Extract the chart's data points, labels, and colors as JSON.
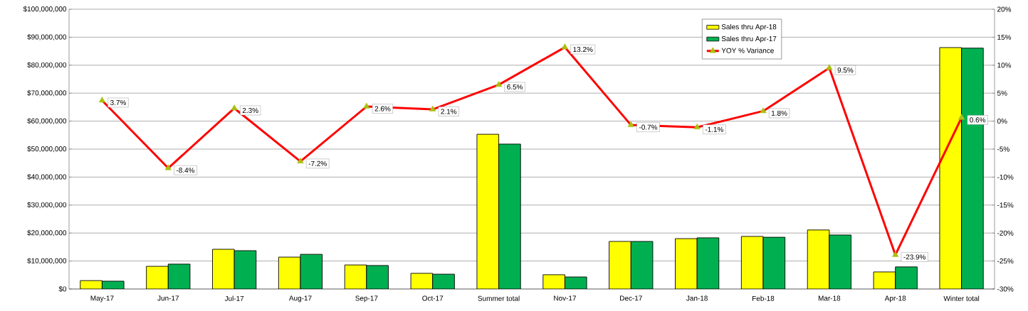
{
  "chart_data": {
    "type": "bar",
    "categories": [
      "May-17",
      "Jun-17",
      "Jul-17",
      "Aug-17",
      "Sep-17",
      "Oct-17",
      "Summer total",
      "Nov-17",
      "Dec-17",
      "Jan-18",
      "Feb-18",
      "Mar-18",
      "Apr-18",
      "Winter total"
    ],
    "series": [
      {
        "name": "Sales thru Apr-18",
        "color": "#ffff00",
        "values": [
          3000000,
          8100000,
          14200000,
          11400000,
          8600000,
          5600000,
          55300000,
          5100000,
          17000000,
          18000000,
          18800000,
          21100000,
          6100000,
          86300000
        ]
      },
      {
        "name": "Sales thru Apr-17",
        "color": "#00b050",
        "values": [
          2800000,
          8900000,
          13700000,
          12400000,
          8400000,
          5300000,
          51800000,
          4300000,
          17000000,
          18300000,
          18500000,
          19300000,
          7900000,
          86100000
        ]
      },
      {
        "name": "YOY % Variance",
        "type": "line",
        "axis": "y2",
        "color": "#ff0000",
        "values": [
          3.7,
          -8.4,
          2.3,
          -7.2,
          2.6,
          2.1,
          6.5,
          13.2,
          -0.7,
          -1.1,
          1.8,
          9.5,
          -23.9,
          0.6
        ],
        "value_labels": [
          "3.7%",
          "-8.4%",
          "2.3%",
          "-7.2%",
          "2.6%",
          "2.1%",
          "6.5%",
          "13.2%",
          "-0.7%",
          "-1.1%",
          "1.8%",
          "9.5%",
          "-23.9%",
          "0.6%"
        ]
      }
    ],
    "ylim": [
      0,
      100000000
    ],
    "yticks": [
      {
        "value": 0,
        "label": "$0"
      },
      {
        "value": 10000000,
        "label": "$10,000,000"
      },
      {
        "value": 20000000,
        "label": "$20,000,000"
      },
      {
        "value": 30000000,
        "label": "$30,000,000"
      },
      {
        "value": 40000000,
        "label": "$40,000,000"
      },
      {
        "value": 50000000,
        "label": "$50,000,000"
      },
      {
        "value": 60000000,
        "label": "$60,000,000"
      },
      {
        "value": 70000000,
        "label": "$70,000,000"
      },
      {
        "value": 80000000,
        "label": "$80,000,000"
      },
      {
        "value": 90000000,
        "label": "$90,000,000"
      },
      {
        "value": 100000000,
        "label": "$100,000,000"
      }
    ],
    "y2lim": [
      -30,
      20
    ],
    "y2ticks": [
      {
        "value": -30,
        "label": "-30%"
      },
      {
        "value": -25,
        "label": "-25%"
      },
      {
        "value": -20,
        "label": "-20%"
      },
      {
        "value": -15,
        "label": "-15%"
      },
      {
        "value": -10,
        "label": "-10%"
      },
      {
        "value": -5,
        "label": "-5%"
      },
      {
        "value": 0,
        "label": "0%"
      },
      {
        "value": 5,
        "label": "5%"
      },
      {
        "value": 10,
        "label": "10%"
      },
      {
        "value": 15,
        "label": "15%"
      },
      {
        "value": 20,
        "label": "20%"
      }
    ],
    "grid": "y",
    "legend": "top right",
    "marker": "triangle",
    "line_style": "solid"
  }
}
